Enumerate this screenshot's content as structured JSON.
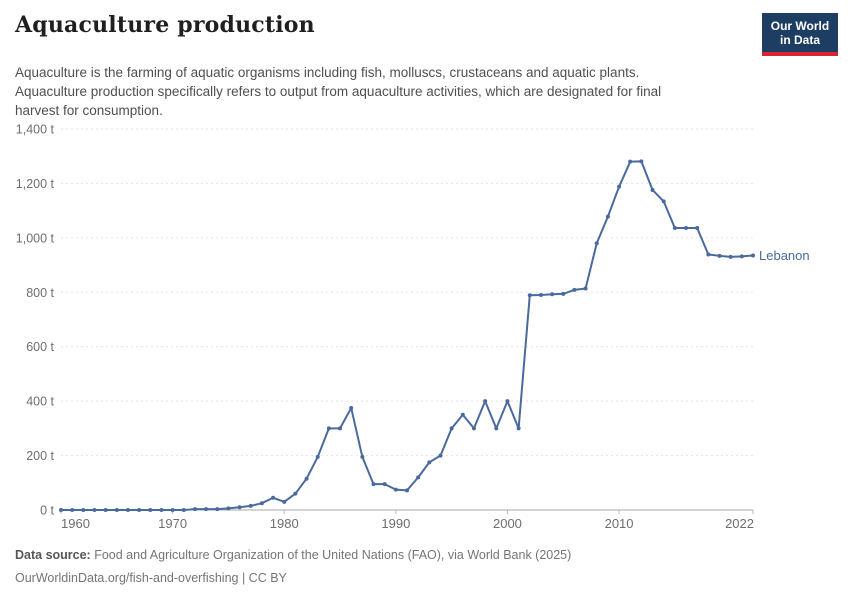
{
  "header": {
    "title": "Aquaculture production",
    "subtitle_lines": [
      "Aquaculture is the farming of aquatic organisms including fish, molluscs, crustaceans and aquatic plants.",
      "Aquaculture production specifically refers to output from aquaculture activities, which are designated for final",
      "harvest for consumption."
    ]
  },
  "logo": {
    "line1": "Our World",
    "line2": "in Data",
    "bg_color": "#1d3d63",
    "bar_color": "#d8242f"
  },
  "chart_data": {
    "type": "line",
    "title": "Aquaculture production",
    "entity": "Lebanon",
    "unit": "t",
    "x_range": [
      1960,
      2022
    ],
    "ylim": [
      0,
      1400
    ],
    "yticks": [
      0,
      200,
      400,
      600,
      800,
      1000,
      1200,
      1400
    ],
    "ytick_labels": [
      "0 t",
      "200 t",
      "400 t",
      "600 t",
      "800 t",
      "1,000 t",
      "1,200 t",
      "1,400 t"
    ],
    "xticks": [
      1960,
      1970,
      1980,
      1990,
      2000,
      2010,
      2022
    ],
    "xtick_labels": [
      "1960",
      "1970",
      "1980",
      "1990",
      "2000",
      "2010",
      "2022"
    ],
    "grid": "horizontal-dashed",
    "legend_position": "end-of-line",
    "series": [
      {
        "name": "Lebanon",
        "color": "#4a6a9e",
        "values": [
          0,
          0,
          0,
          0,
          0,
          0,
          0,
          0,
          0,
          0,
          0,
          0,
          3,
          3,
          3,
          6,
          10,
          15,
          25,
          45,
          30,
          60,
          115,
          195,
          300,
          300,
          375,
          195,
          95,
          95,
          75,
          72,
          120,
          175,
          200,
          300,
          350,
          300,
          400,
          300,
          400,
          300,
          789,
          790,
          793,
          794,
          809,
          814,
          980,
          1078,
          1188,
          1280,
          1281,
          1176,
          1134,
          1036,
          1036,
          1036,
          939,
          934,
          930,
          932,
          935
        ]
      }
    ]
  },
  "footer": {
    "source_label": "Data source:",
    "source_text": " Food and Agriculture Organization of the United Nations (FAO), via World Bank (2025)",
    "link_line": "OurWorldinData.org/fish-and-overfishing | CC BY"
  }
}
